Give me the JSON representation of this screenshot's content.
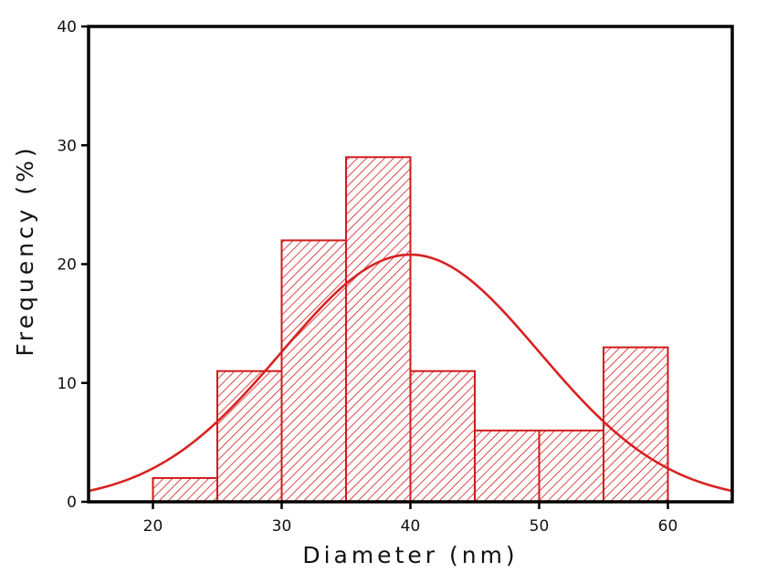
{
  "chart_data": {
    "type": "bar",
    "title": "",
    "xlabel": "Diameter (nm)",
    "ylabel": "Frequency (%)",
    "xlim": [
      15,
      65
    ],
    "ylim": [
      0,
      40
    ],
    "x_ticks": [
      20,
      30,
      40,
      50,
      60
    ],
    "y_ticks": [
      0,
      10,
      20,
      30,
      40
    ],
    "bins": [
      {
        "start": 20,
        "end": 25,
        "value": 2
      },
      {
        "start": 25,
        "end": 30,
        "value": 11
      },
      {
        "start": 30,
        "end": 35,
        "value": 22
      },
      {
        "start": 35,
        "end": 40,
        "value": 29
      },
      {
        "start": 40,
        "end": 45,
        "value": 11
      },
      {
        "start": 45,
        "end": 50,
        "value": 6
      },
      {
        "start": 50,
        "end": 55,
        "value": 6
      },
      {
        "start": 55,
        "end": 60,
        "value": 13
      }
    ],
    "fit_curve": {
      "type": "gaussian",
      "mean": 40,
      "std": 10,
      "peak": 20.8
    },
    "bar_color": "#d21a1a",
    "bar_fill": "hatched",
    "curve_color": "#d82222",
    "grid": false,
    "legend": "none"
  }
}
